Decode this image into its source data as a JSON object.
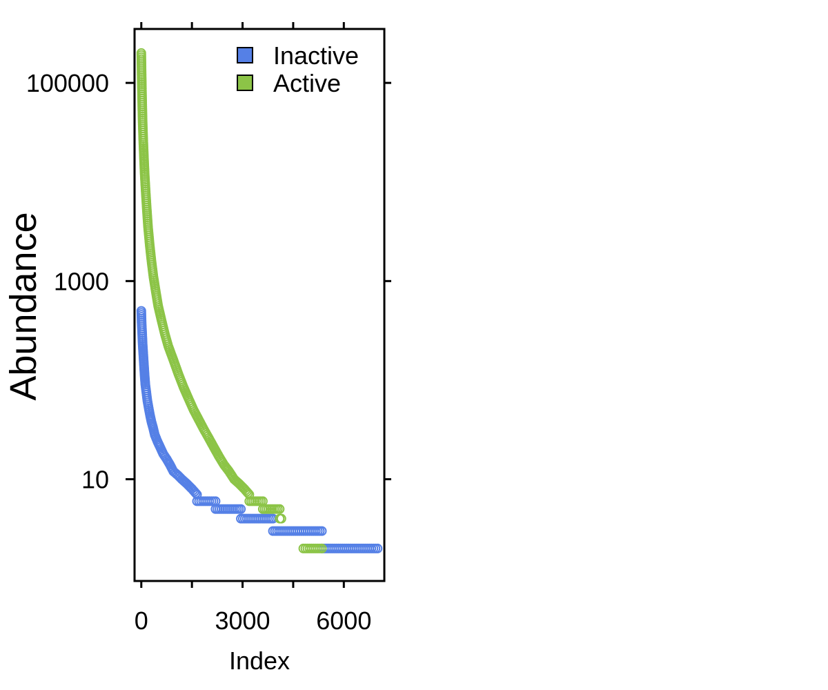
{
  "chart_data": {
    "type": "scatter",
    "title": "",
    "xlabel": "Index",
    "ylabel": "Abundance",
    "xlim": [
      -200,
      7200
    ],
    "ylim": [
      0.94,
      350000
    ],
    "yscale": "log",
    "x_ticks": [
      {
        "value": 0,
        "label": "0"
      },
      {
        "value": 1500,
        "label": ""
      },
      {
        "value": 3000,
        "label": "3000"
      },
      {
        "value": 4500,
        "label": ""
      },
      {
        "value": 6000,
        "label": "6000"
      }
    ],
    "y_ticks": [
      {
        "value": 10,
        "label": "10"
      },
      {
        "value": 1000,
        "label": "1000"
      },
      {
        "value": 100000,
        "label": "100000"
      }
    ],
    "grid": false,
    "legend_position": "top-right",
    "series": [
      {
        "name": "Inactive",
        "color": "#5580E6",
        "marker": "open-circle",
        "segments": [
          {
            "x": [
              0,
              10,
              25,
              40,
              60,
              80,
              100,
              120,
              150,
              180,
              220,
              260,
              300,
              350,
              400,
              480,
              560,
              650,
              750,
              850,
              950,
              1080,
              1200,
              1350,
              1500,
              1650
            ],
            "y": [
              500,
              380,
              300,
              230,
              180,
              140,
              110,
              90,
              75,
              62,
              52,
              44,
              38,
              33,
              28,
              24,
              21,
              18,
              16,
              14,
              12,
              11,
              10,
              9,
              8,
              7
            ]
          },
          {
            "x": [
              1650,
              2200
            ],
            "y": [
              6,
              6
            ]
          },
          {
            "x": [
              2200,
              2950
            ],
            "y": [
              5,
              5
            ]
          },
          {
            "x": [
              2950,
              3900
            ],
            "y": [
              4,
              4
            ]
          },
          {
            "x": [
              3900,
              5350
            ],
            "y": [
              3,
              3
            ]
          },
          {
            "x": [
              5350,
              7000
            ],
            "y": [
              2,
              2
            ]
          }
        ]
      },
      {
        "name": "Active",
        "color": "#8CC447",
        "marker": "open-circle",
        "segments": [
          {
            "x": [
              0,
              10,
              20,
              30,
              40,
              60,
              80,
              100,
              130,
              160,
              200,
              250,
              300,
              360,
              430,
              500,
              600,
              700,
              800,
              950,
              1100,
              1250,
              1400,
              1550,
              1700,
              1850,
              2000,
              2150,
              2300,
              2450,
              2600,
              2750,
              2900,
              3050,
              3200
            ],
            "y": [
              200000,
              120000,
              80000,
              55000,
              40000,
              25000,
              17000,
              12000,
              8000,
              5500,
              3500,
              2300,
              1600,
              1100,
              780,
              560,
              400,
              290,
              220,
              160,
              115,
              85,
              65,
              50,
              40,
              32,
              26,
              21,
              17,
              14,
              12,
              10,
              9,
              8,
              7
            ]
          },
          {
            "x": [
              3200,
              3600
            ],
            "y": [
              6,
              6
            ]
          },
          {
            "x": [
              3600,
              4100
            ],
            "y": [
              5,
              5
            ]
          },
          {
            "x": [
              4100,
              4150
            ],
            "y": [
              4,
              4
            ]
          },
          {
            "x": [
              4800,
              5350
            ],
            "y": [
              2,
              2
            ]
          }
        ]
      }
    ]
  }
}
